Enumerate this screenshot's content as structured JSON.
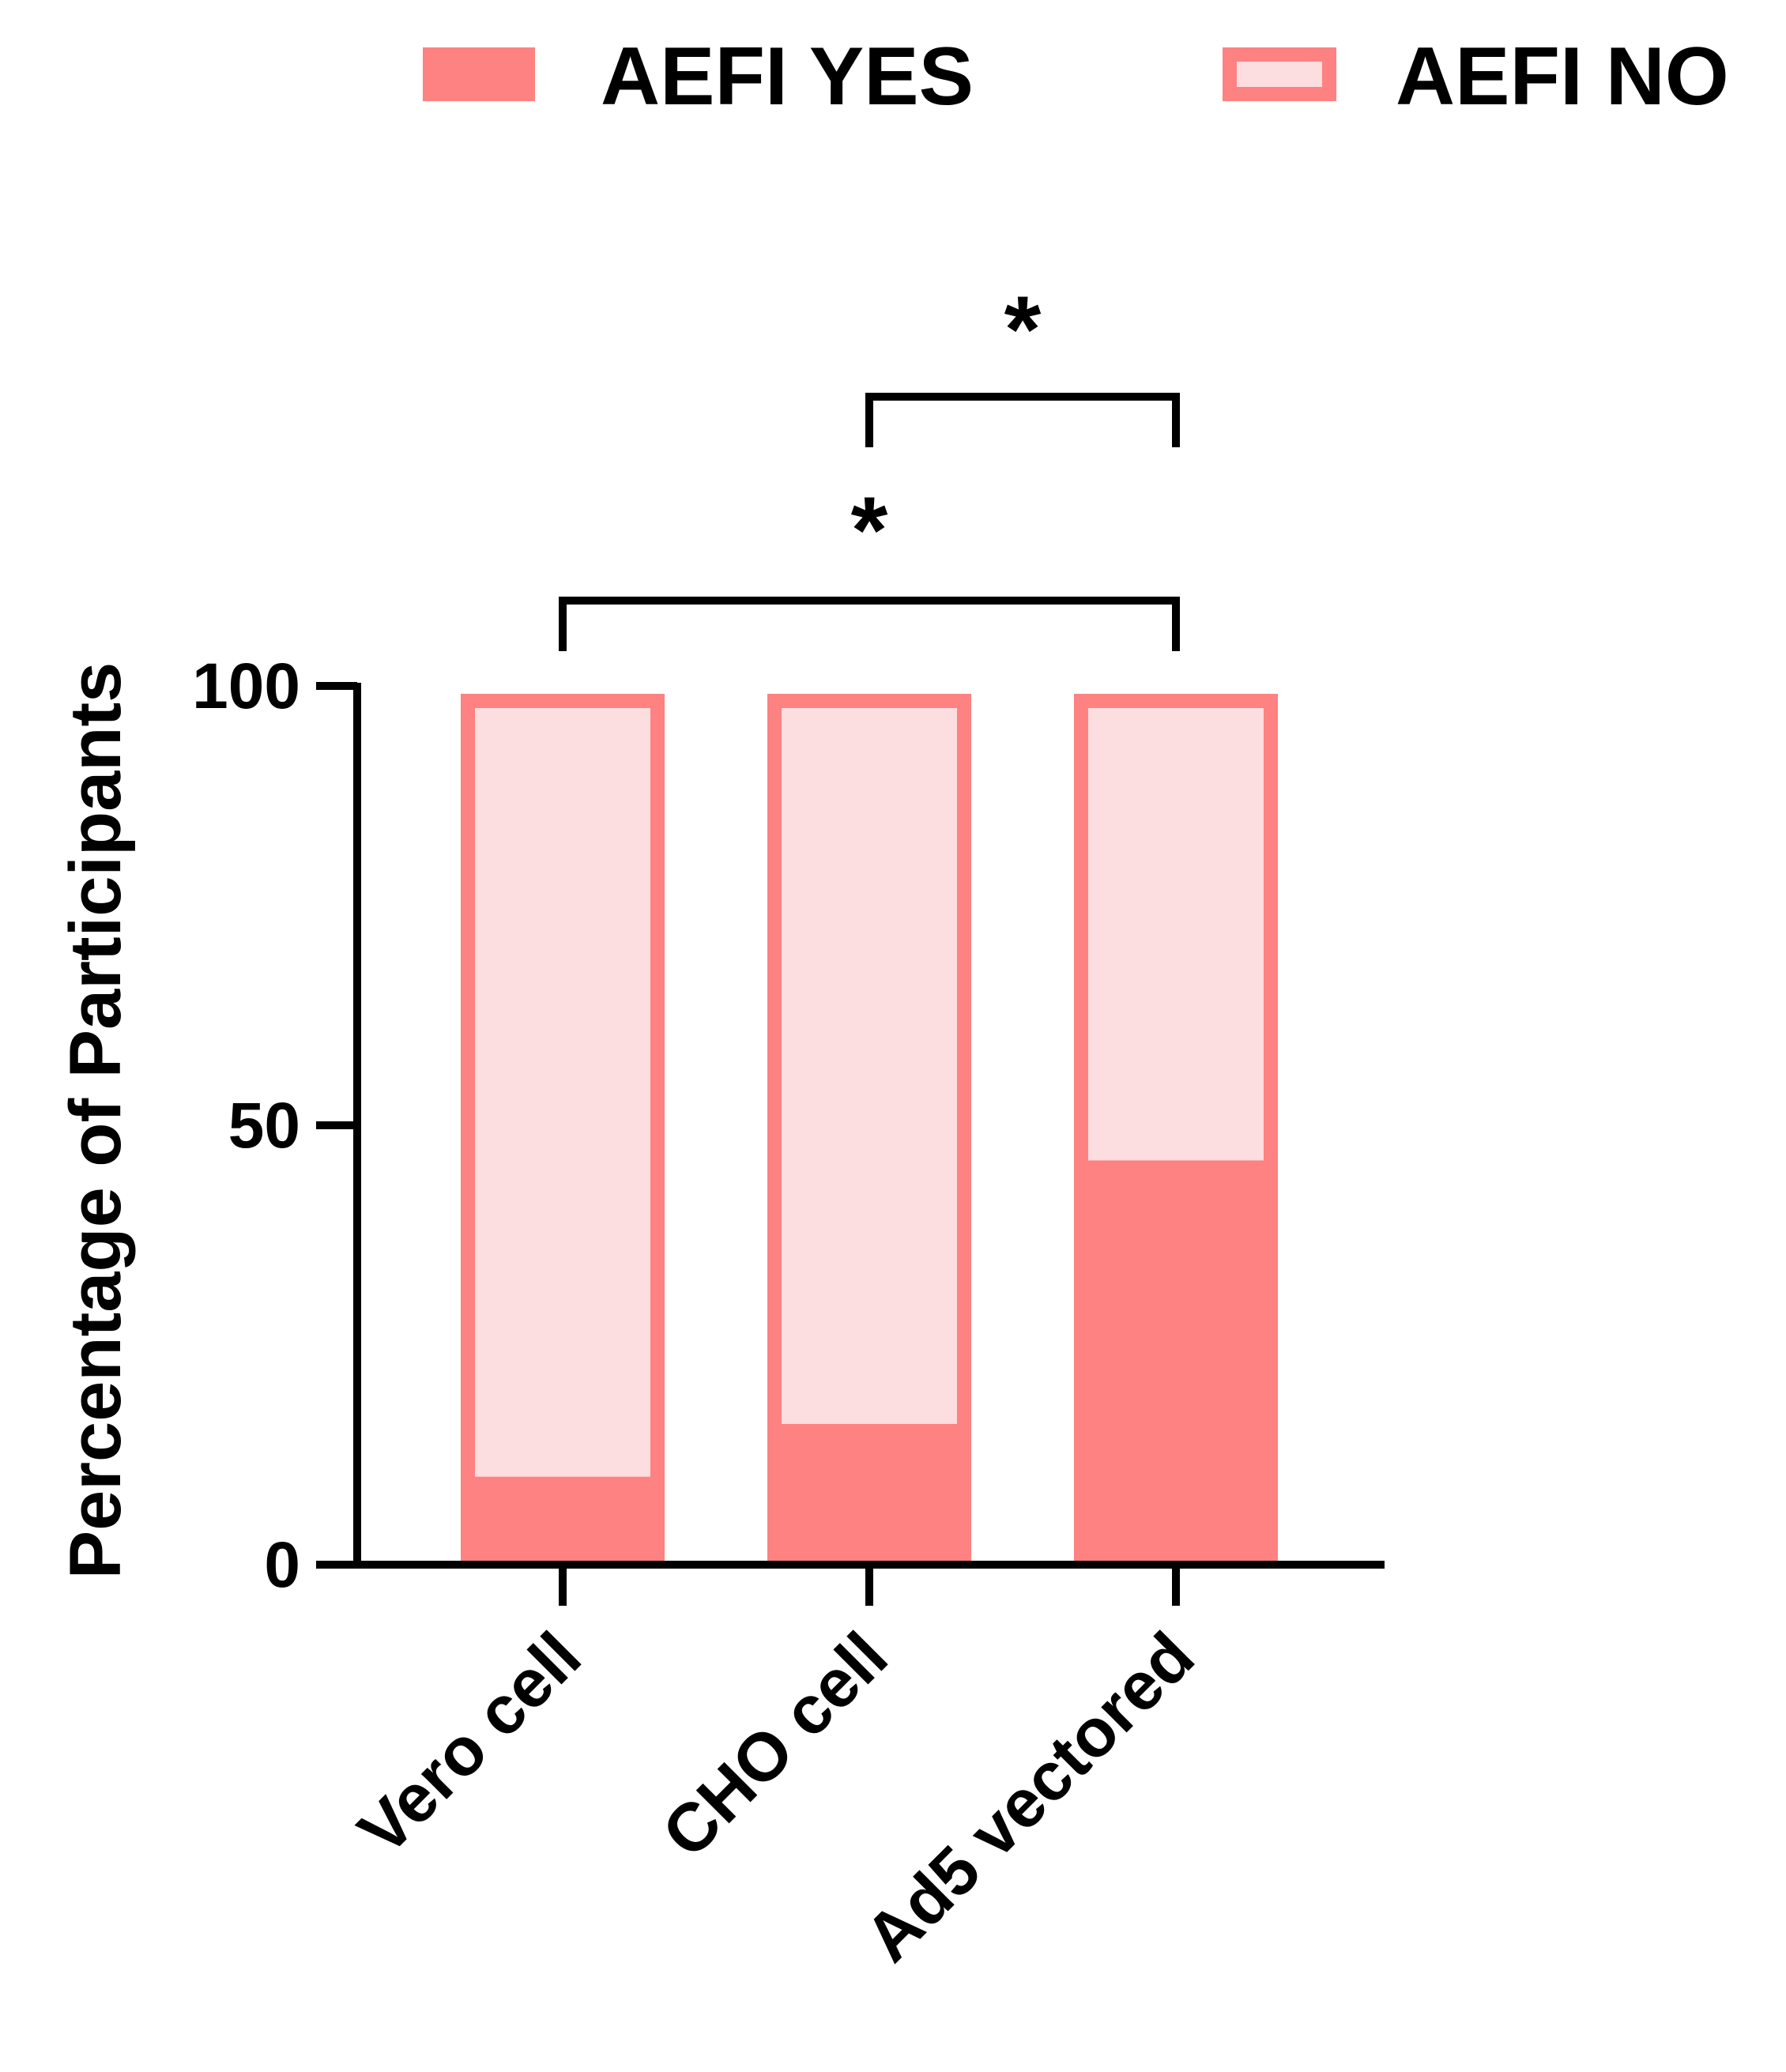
{
  "colors": {
    "aefi_yes": "#fd8281",
    "aefi_no_fill": "#fcdde0",
    "aefi_no_border": "#fd8281",
    "axis": "#000000"
  },
  "chart_data": {
    "type": "bar",
    "stacked": true,
    "categories": [
      "Vero cell",
      "CHO cell",
      "Ad5 vectored"
    ],
    "series": [
      {
        "name": "AEFI YES",
        "values": [
          10,
          16,
          46
        ]
      },
      {
        "name": "AEFI NO",
        "values": [
          90,
          84,
          54
        ]
      }
    ],
    "ylabel": "Percentage of Participants",
    "xlabel": "",
    "ylim": [
      0,
      100
    ],
    "yticks": [
      "0",
      "50",
      "100"
    ],
    "legend_position": "top",
    "significance": [
      {
        "from": "Vero cell",
        "to": "Ad5 vectored",
        "label": "*"
      },
      {
        "from": "CHO cell",
        "to": "Ad5 vectored",
        "label": "*"
      }
    ]
  }
}
